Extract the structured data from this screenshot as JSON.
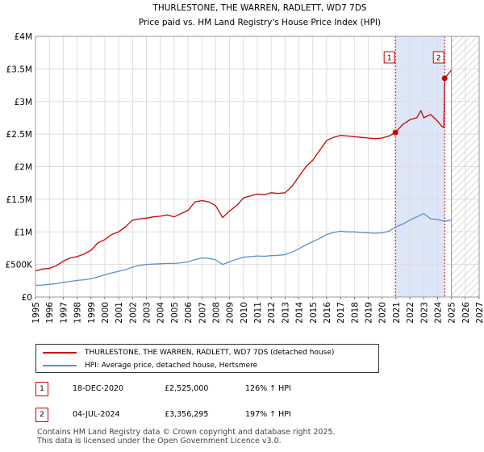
{
  "chart_data": {
    "type": "line",
    "title": "THURLESTONE, THE WARREN, RADLETT, WD7 7DS",
    "subtitle": "Price paid vs. HM Land Registry's House Price Index (HPI)",
    "xlim": [
      1995,
      2027
    ],
    "ylim": [
      0,
      4000000
    ],
    "x_ticks": [
      "1995",
      "1996",
      "1997",
      "1998",
      "1999",
      "2000",
      "2001",
      "2002",
      "2003",
      "2004",
      "2005",
      "2006",
      "2007",
      "2008",
      "2009",
      "2010",
      "2011",
      "2012",
      "2013",
      "2014",
      "2015",
      "2016",
      "2017",
      "2018",
      "2019",
      "2020",
      "2021",
      "2022",
      "2023",
      "2024",
      "2025",
      "2026",
      "2027"
    ],
    "y_ticks": [
      {
        "value": 0,
        "label": "£0"
      },
      {
        "value": 500000,
        "label": "£500K"
      },
      {
        "value": 1000000,
        "label": "£1M"
      },
      {
        "value": 1500000,
        "label": "£1.5M"
      },
      {
        "value": 2000000,
        "label": "£2M"
      },
      {
        "value": 2500000,
        "label": "£2.5M"
      },
      {
        "value": 3000000,
        "label": "£3M"
      },
      {
        "value": 3500000,
        "label": "£3.5M"
      },
      {
        "value": 4000000,
        "label": "£4M"
      }
    ],
    "grid": true,
    "shaded_period": {
      "start": 2020.96,
      "end": 2024.51,
      "color": "#dde6f7"
    },
    "future_hatch_from": 2025.0,
    "series": [
      {
        "name": "THURLESTONE, THE WARREN, RADLETT, WD7 7DS (detached house)",
        "color": "#cc0000",
        "x": [
          1995.0,
          1995.5,
          1996.0,
          1996.5,
          1997.0,
          1997.5,
          1998.0,
          1998.5,
          1999.0,
          1999.5,
          2000.0,
          2000.5,
          2001.0,
          2001.5,
          2002.0,
          2002.5,
          2003.0,
          2003.5,
          2004.0,
          2004.5,
          2005.0,
          2005.5,
          2006.0,
          2006.5,
          2007.0,
          2007.5,
          2008.0,
          2008.5,
          2009.0,
          2009.5,
          2010.0,
          2010.5,
          2011.0,
          2011.5,
          2012.0,
          2012.5,
          2013.0,
          2013.5,
          2014.0,
          2014.5,
          2015.0,
          2015.5,
          2016.0,
          2016.5,
          2017.0,
          2017.5,
          2018.0,
          2018.5,
          2019.0,
          2019.5,
          2020.0,
          2020.5,
          2020.96,
          2021.2,
          2021.5,
          2022.0,
          2022.5,
          2022.8,
          2023.0,
          2023.5,
          2024.0,
          2024.3,
          2024.45,
          2024.51,
          2024.8,
          2025.0
        ],
        "values": [
          400000,
          430000,
          440000,
          480000,
          550000,
          600000,
          620000,
          660000,
          720000,
          830000,
          880000,
          960000,
          1000000,
          1080000,
          1180000,
          1200000,
          1210000,
          1230000,
          1240000,
          1260000,
          1230000,
          1280000,
          1330000,
          1460000,
          1480000,
          1460000,
          1400000,
          1220000,
          1320000,
          1400000,
          1520000,
          1550000,
          1580000,
          1570000,
          1600000,
          1590000,
          1600000,
          1700000,
          1850000,
          2000000,
          2100000,
          2250000,
          2400000,
          2450000,
          2480000,
          2470000,
          2460000,
          2450000,
          2440000,
          2430000,
          2440000,
          2470000,
          2525000,
          2580000,
          2650000,
          2720000,
          2750000,
          2860000,
          2750000,
          2800000,
          2700000,
          2620000,
          2600000,
          3356295,
          3430000,
          3480000
        ]
      },
      {
        "name": "HPI: Average price, detached house, Hertsmere",
        "color": "#5b8fd0",
        "x": [
          1995.0,
          1995.5,
          1996.0,
          1996.5,
          1997.0,
          1997.5,
          1998.0,
          1998.5,
          1999.0,
          1999.5,
          2000.0,
          2000.5,
          2001.0,
          2001.5,
          2002.0,
          2002.5,
          2003.0,
          2003.5,
          2004.0,
          2004.5,
          2005.0,
          2005.5,
          2006.0,
          2006.5,
          2007.0,
          2007.5,
          2008.0,
          2008.5,
          2009.0,
          2009.5,
          2010.0,
          2010.5,
          2011.0,
          2011.5,
          2012.0,
          2012.5,
          2013.0,
          2013.5,
          2014.0,
          2014.5,
          2015.0,
          2015.5,
          2016.0,
          2016.5,
          2017.0,
          2017.5,
          2018.0,
          2018.5,
          2019.0,
          2019.5,
          2020.0,
          2020.5,
          2021.0,
          2021.5,
          2022.0,
          2022.5,
          2023.0,
          2023.5,
          2024.0,
          2024.5,
          2025.0
        ],
        "values": [
          180000,
          185000,
          195000,
          205000,
          225000,
          240000,
          255000,
          265000,
          280000,
          310000,
          340000,
          370000,
          395000,
          420000,
          460000,
          485000,
          500000,
          505000,
          510000,
          515000,
          515000,
          525000,
          540000,
          575000,
          600000,
          595000,
          570000,
          500000,
          540000,
          580000,
          610000,
          620000,
          630000,
          625000,
          635000,
          640000,
          650000,
          690000,
          740000,
          800000,
          850000,
          900000,
          960000,
          990000,
          1010000,
          1000000,
          1000000,
          990000,
          985000,
          980000,
          985000,
          1010000,
          1080000,
          1120000,
          1180000,
          1230000,
          1280000,
          1200000,
          1190000,
          1160000,
          1180000
        ]
      }
    ],
    "sales": [
      {
        "label": "1",
        "date": "18-DEC-2020",
        "year": 2020.96,
        "value": 2525000
      },
      {
        "label": "2",
        "date": "04-JUL-2024",
        "year": 2024.51,
        "value": 3356295
      }
    ]
  },
  "legend": {
    "property_label": "THURLESTONE, THE WARREN, RADLETT, WD7 7DS (detached house)",
    "property_color": "#cc0000",
    "hpi_label": "HPI: Average price, detached house, Hertsmere",
    "hpi_color": "#5b8fd0"
  },
  "transactions": [
    {
      "num": "1",
      "date": "18-DEC-2020",
      "price": "£2,525,000",
      "hpi": "126% ↑ HPI"
    },
    {
      "num": "2",
      "date": "04-JUL-2024",
      "price": "£3,356,295",
      "hpi": "197% ↑ HPI"
    }
  ],
  "footer": {
    "line1": "Contains HM Land Registry data © Crown copyright and database right 2025.",
    "line2": "This data is licensed under the Open Government Licence v3.0."
  }
}
